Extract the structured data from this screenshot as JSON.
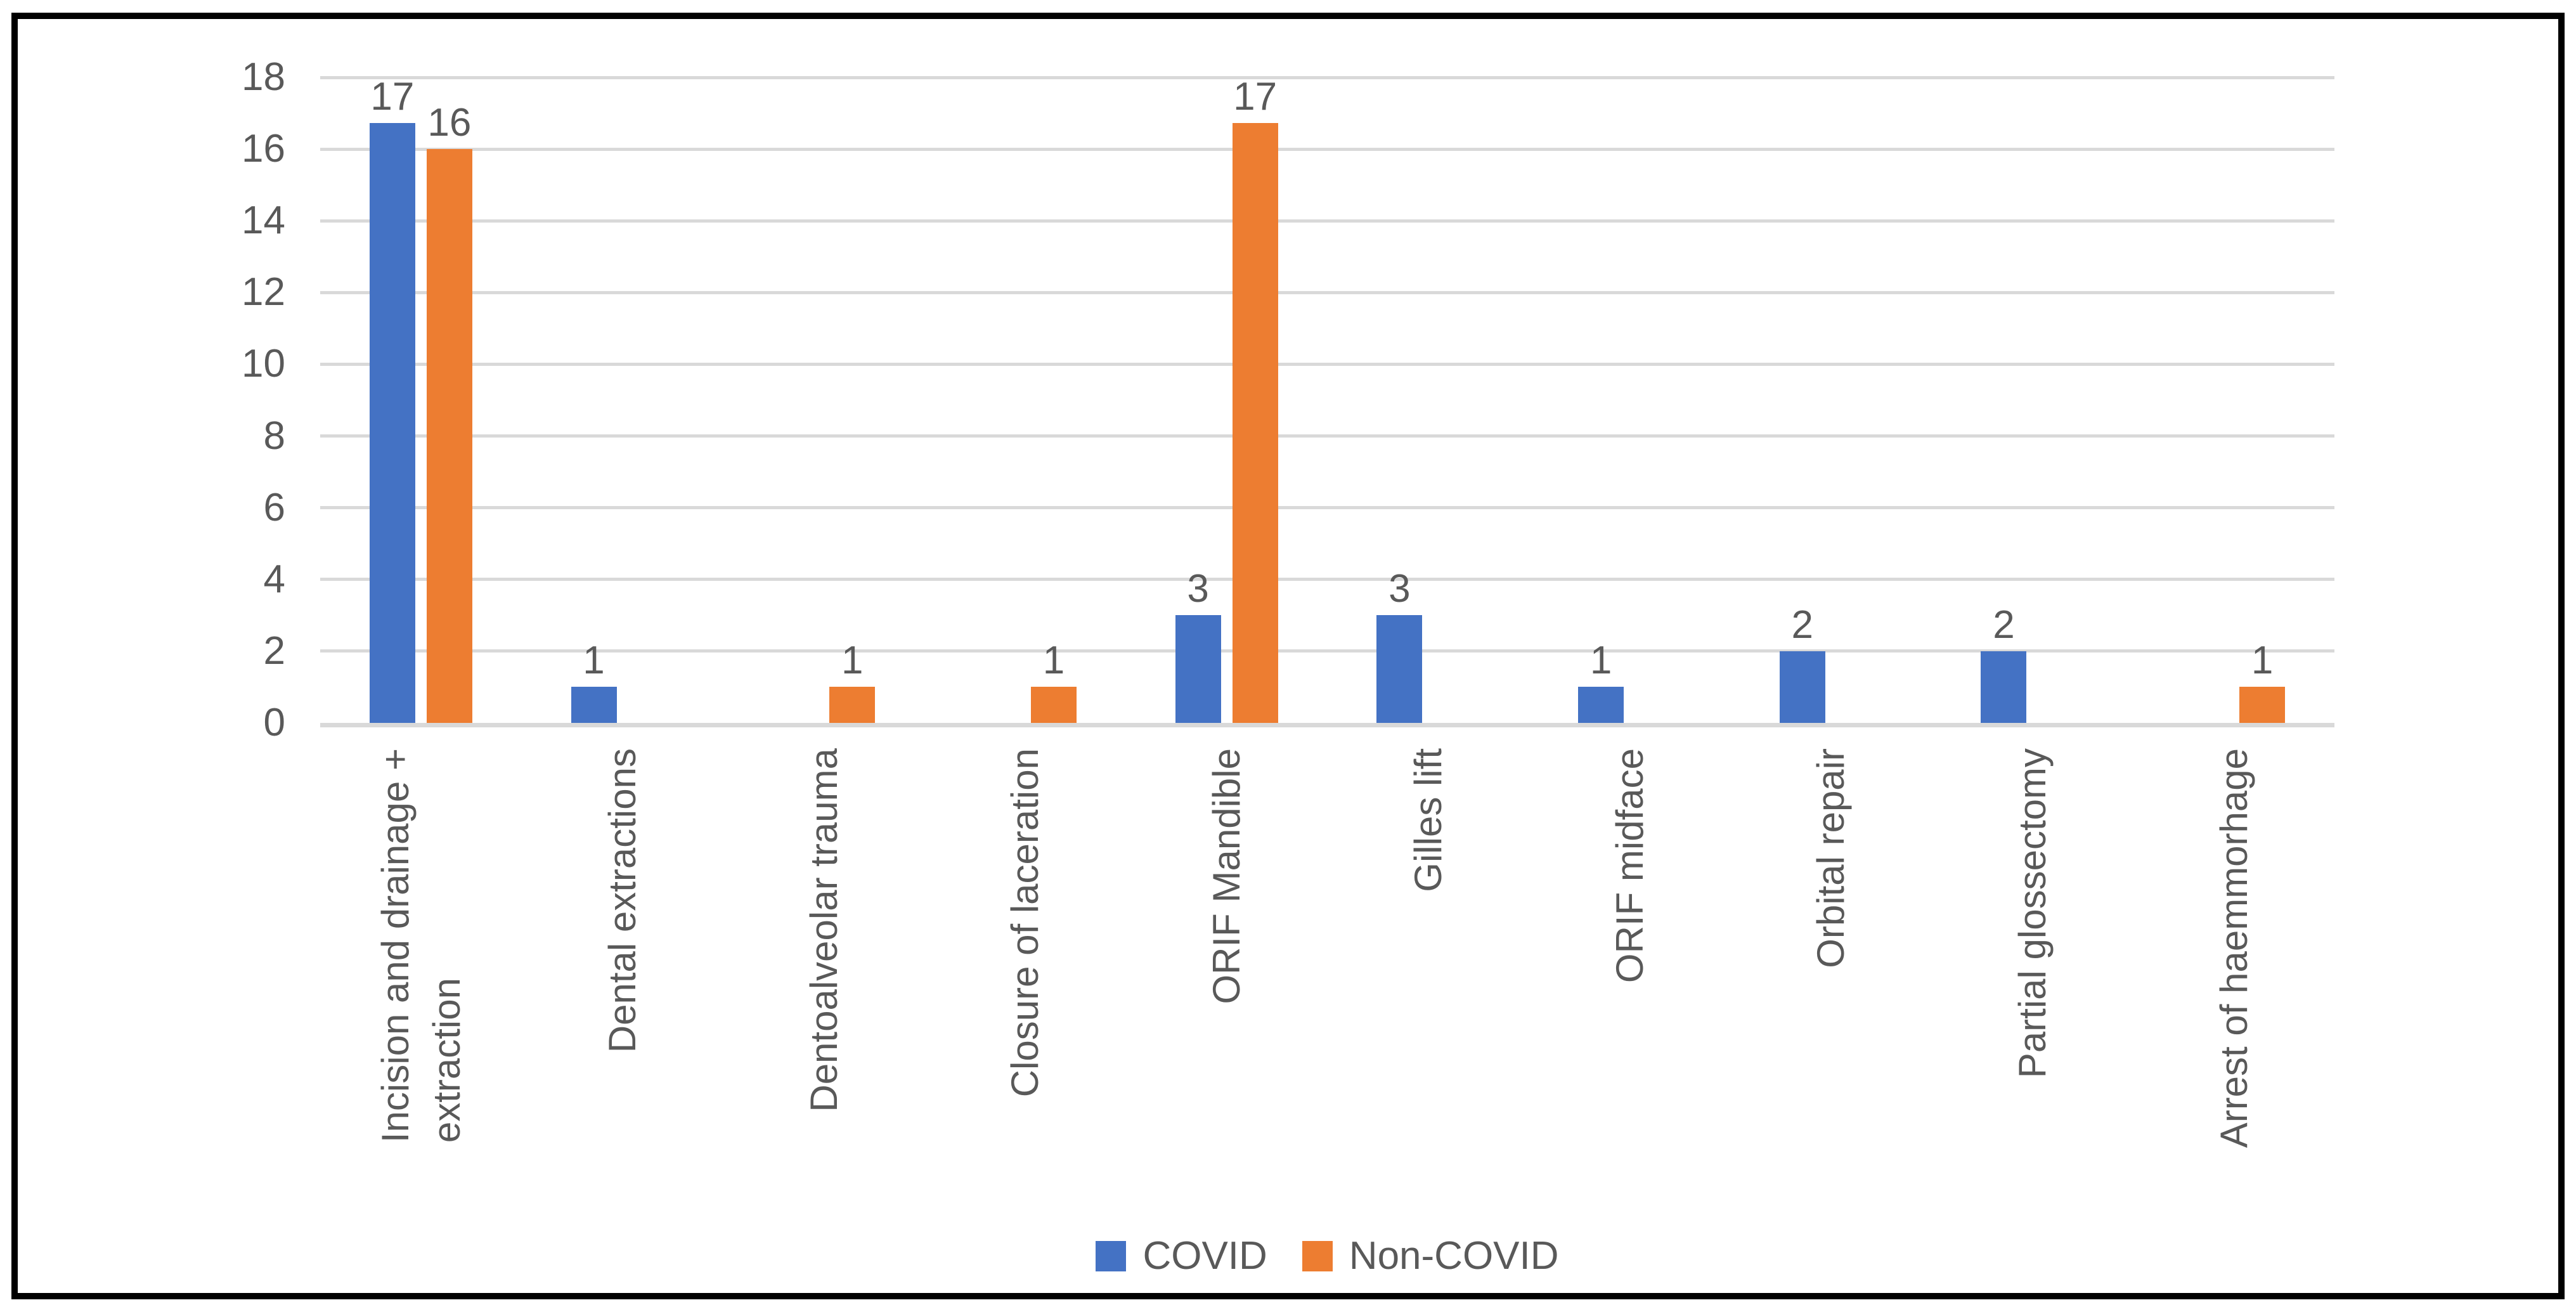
{
  "chart_data": {
    "type": "bar",
    "title": "",
    "categories": [
      "Incision and drainage +\nextraction",
      "Dental extractions",
      "Dentoalveolar trauma",
      "Closure of laceration",
      "ORIF Mandible",
      "Gilles lift",
      "ORIF midface",
      "Orbital repair",
      "Partial glossectomy",
      "Arrest of haemmorhage"
    ],
    "series": [
      {
        "name": "COVID",
        "color": "#4472C4",
        "values": [
          17,
          1,
          0,
          0,
          3,
          3,
          1,
          2,
          2,
          0
        ]
      },
      {
        "name": "Non-COVID",
        "color": "#ED7D31",
        "values": [
          16,
          0,
          1,
          1,
          17,
          0,
          0,
          0,
          0,
          1
        ]
      }
    ],
    "data_labels_shown": true,
    "xlabel": "",
    "ylabel": "",
    "ylim": [
      0,
      18
    ],
    "yticks": [
      0,
      2,
      4,
      6,
      8,
      10,
      12,
      14,
      16,
      18
    ],
    "grid": true,
    "legend_position": "bottom"
  },
  "colors": {
    "covid_bar": "#4472C4",
    "non_covid_bar": "#ED7D31",
    "gridline": "#d9d9d9",
    "axis_text": "#595959",
    "frame_border": "#000000",
    "background": "#ffffff"
  },
  "legend": {
    "items": [
      {
        "label": "COVID",
        "color": "#4472C4"
      },
      {
        "label": "Non-COVID",
        "color": "#ED7D31"
      }
    ]
  }
}
